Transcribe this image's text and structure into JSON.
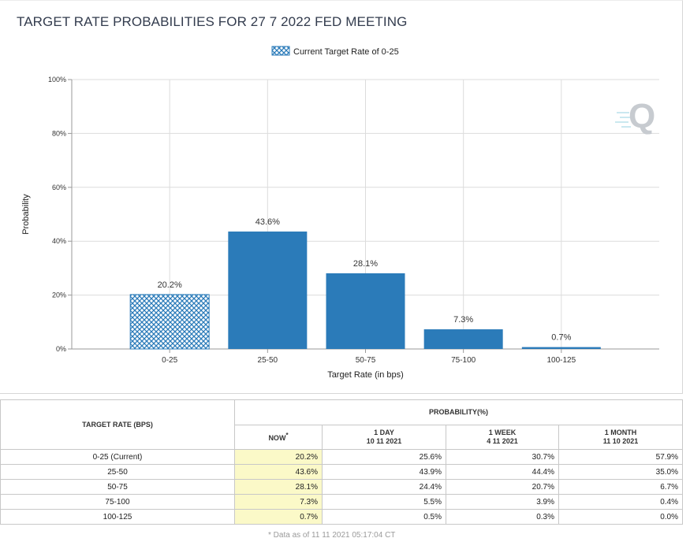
{
  "title": "TARGET RATE PROBABILITIES FOR 27 7 2022 FED MEETING",
  "legend_label": "Current Target Rate of 0-25",
  "colors": {
    "bar": "#2b7bb9",
    "hatch": "#2b7bb9",
    "now_bg": "#fbf9c8",
    "title": "#333c4e"
  },
  "logo_text": "Q",
  "chart_data": {
    "type": "bar",
    "title": "TARGET RATE PROBABILITIES FOR 27 7 2022 FED MEETING",
    "xlabel": "Target Rate (in bps)",
    "ylabel": "Probability",
    "categories": [
      "0-25",
      "25-50",
      "50-75",
      "75-100",
      "100-125"
    ],
    "values": [
      20.2,
      43.6,
      28.1,
      7.3,
      0.7
    ],
    "data_labels": [
      "20.2%",
      "43.6%",
      "28.1%",
      "7.3%",
      "0.7%"
    ],
    "hatched": [
      true,
      false,
      false,
      false,
      false
    ],
    "ylim": [
      0,
      100
    ],
    "yticks": [
      "0%",
      "20%",
      "40%",
      "60%",
      "80%",
      "100%"
    ],
    "grid": true,
    "legend_placement": "top"
  },
  "table": {
    "rate_header": "TARGET RATE (BPS)",
    "prob_header": "PROBABILITY(%)",
    "columns": [
      {
        "label": "NOW",
        "marker": "*",
        "date": ""
      },
      {
        "label": "1 DAY",
        "date": "10 11 2021"
      },
      {
        "label": "1 WEEK",
        "date": "4 11 2021"
      },
      {
        "label": "1 MONTH",
        "date": "11 10 2021"
      }
    ],
    "rows": [
      {
        "rate": "0-25 (Current)",
        "now": "20.2%",
        "day": "25.6%",
        "week": "30.7%",
        "month": "57.9%"
      },
      {
        "rate": "25-50",
        "now": "43.6%",
        "day": "43.9%",
        "week": "44.4%",
        "month": "35.0%"
      },
      {
        "rate": "50-75",
        "now": "28.1%",
        "day": "24.4%",
        "week": "20.7%",
        "month": "6.7%"
      },
      {
        "rate": "75-100",
        "now": "7.3%",
        "day": "5.5%",
        "week": "3.9%",
        "month": "0.4%"
      },
      {
        "rate": "100-125",
        "now": "0.7%",
        "day": "0.5%",
        "week": "0.3%",
        "month": "0.0%"
      }
    ],
    "footnote": "* Data as of 11 11 2021 05:17:04 CT"
  }
}
